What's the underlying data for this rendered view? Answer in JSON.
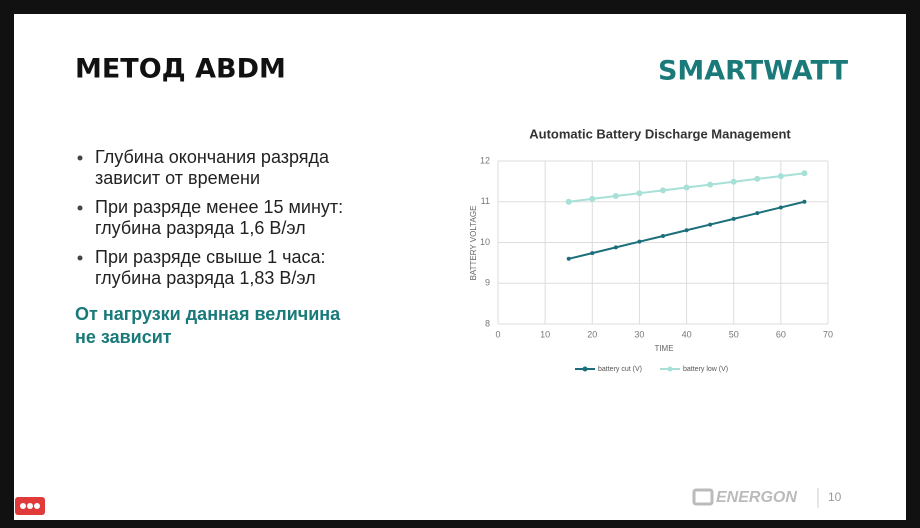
{
  "slide": {
    "title": "МЕТОД ABDM",
    "logo": "SMARTWATT",
    "bullets": [
      [
        "Глубина окончания разряда",
        "зависит от времени"
      ],
      [
        "При разряде менее 15 минут:",
        "глубина разряда 1,6 В/эл"
      ],
      [
        "При разряде свыше 1 часа:",
        "глубина разряда 1,83 В/эл"
      ]
    ],
    "note": [
      "От нагрузки данная величина",
      "не зависит"
    ],
    "footer": {
      "brand": "ENERGON",
      "page": "10"
    }
  },
  "chart_data": {
    "type": "line",
    "title": "Automatic Battery Discharge Management",
    "x_label": "TIME",
    "y_label": "BATTERY VOLTAGE",
    "x": [
      15,
      20,
      25,
      30,
      35,
      40,
      45,
      50,
      55,
      60,
      65
    ],
    "series": [
      {
        "name": "battery cut (V)",
        "color": "#1b6f7a",
        "values": [
          9.6,
          9.74,
          9.88,
          10.02,
          10.16,
          10.3,
          10.44,
          10.58,
          10.72,
          10.86,
          11.0
        ]
      },
      {
        "name": "battery low (V)",
        "color": "#a6e0d6",
        "values": [
          11.0,
          11.07,
          11.14,
          11.21,
          11.28,
          11.35,
          11.42,
          11.49,
          11.56,
          11.63,
          11.7
        ]
      }
    ],
    "xlim": [
      0,
      70
    ],
    "xticks": [
      0,
      10,
      20,
      30,
      40,
      50,
      60,
      70
    ],
    "ylim": [
      8,
      12
    ],
    "yticks": [
      8,
      9,
      10,
      11,
      12
    ],
    "grid": true,
    "legend": "bottom"
  }
}
